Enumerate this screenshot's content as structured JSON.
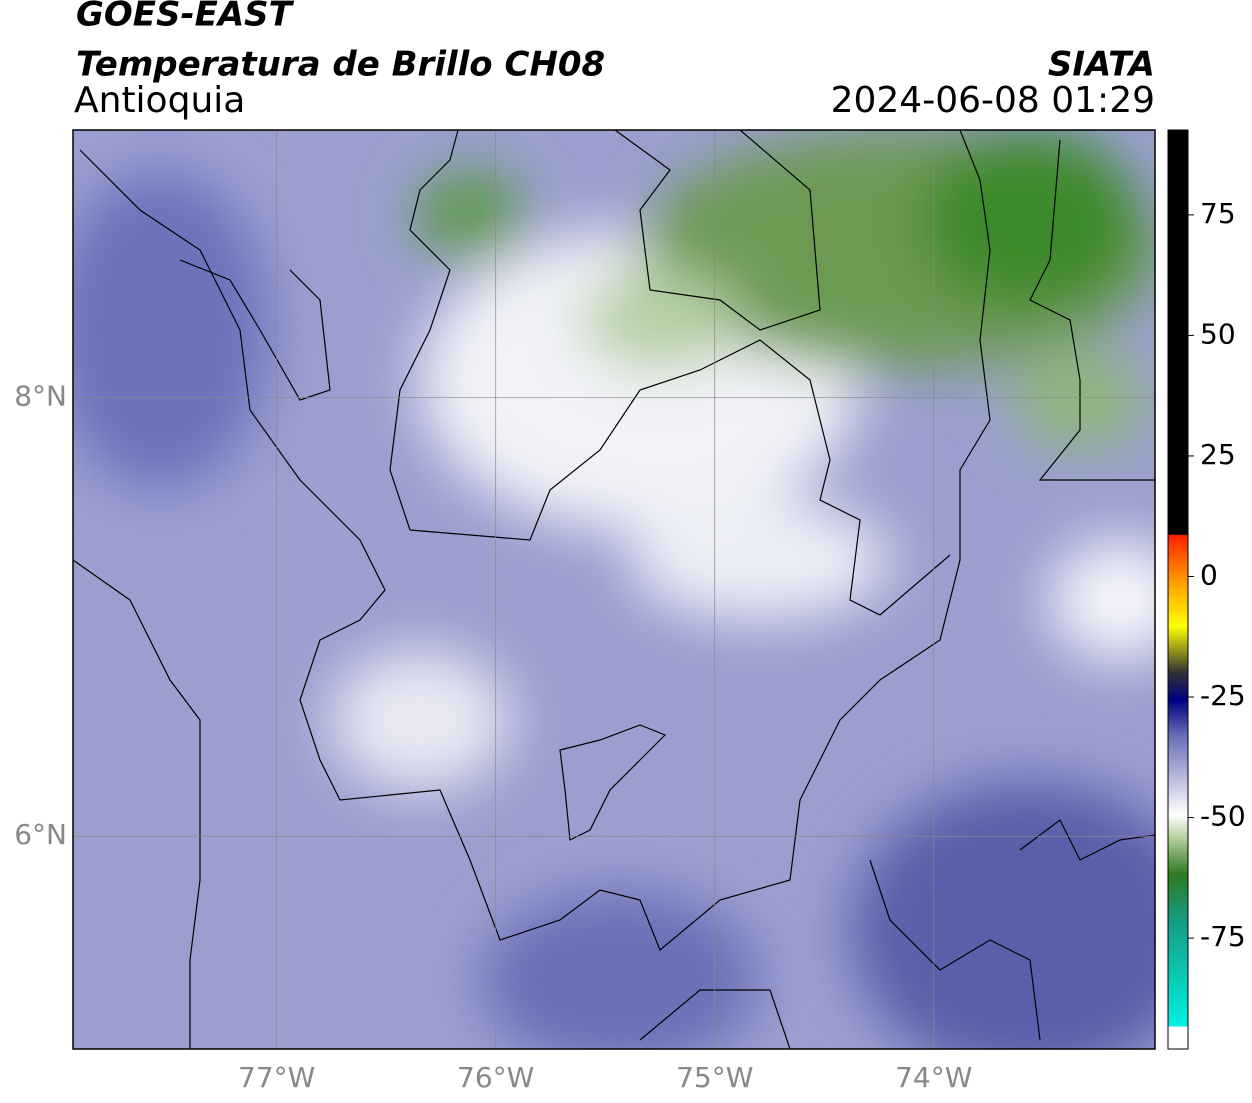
{
  "header": {
    "title": "GOES-EAST",
    "subtitle": "Temperatura de Brillo CH08",
    "region": "Antioquia",
    "source": "SIATA",
    "datetime": "2024-06-08 01:29"
  },
  "map": {
    "lon_range": [
      -77.93,
      -72.99
    ],
    "lat_range": [
      5.03,
      9.22
    ],
    "lon_ticks": [
      {
        "value": -77,
        "label": "77°W"
      },
      {
        "value": -76,
        "label": "76°W"
      },
      {
        "value": -75,
        "label": "75°W"
      },
      {
        "value": -74,
        "label": "74°W"
      }
    ],
    "lat_ticks": [
      {
        "value": 8,
        "label": "8°N"
      },
      {
        "value": 6,
        "label": "6°N"
      }
    ]
  },
  "colorbar": {
    "range": [
      -98,
      92.6
    ],
    "ticks": [
      75,
      50,
      25,
      0,
      -25,
      -50,
      -75
    ]
  }
}
